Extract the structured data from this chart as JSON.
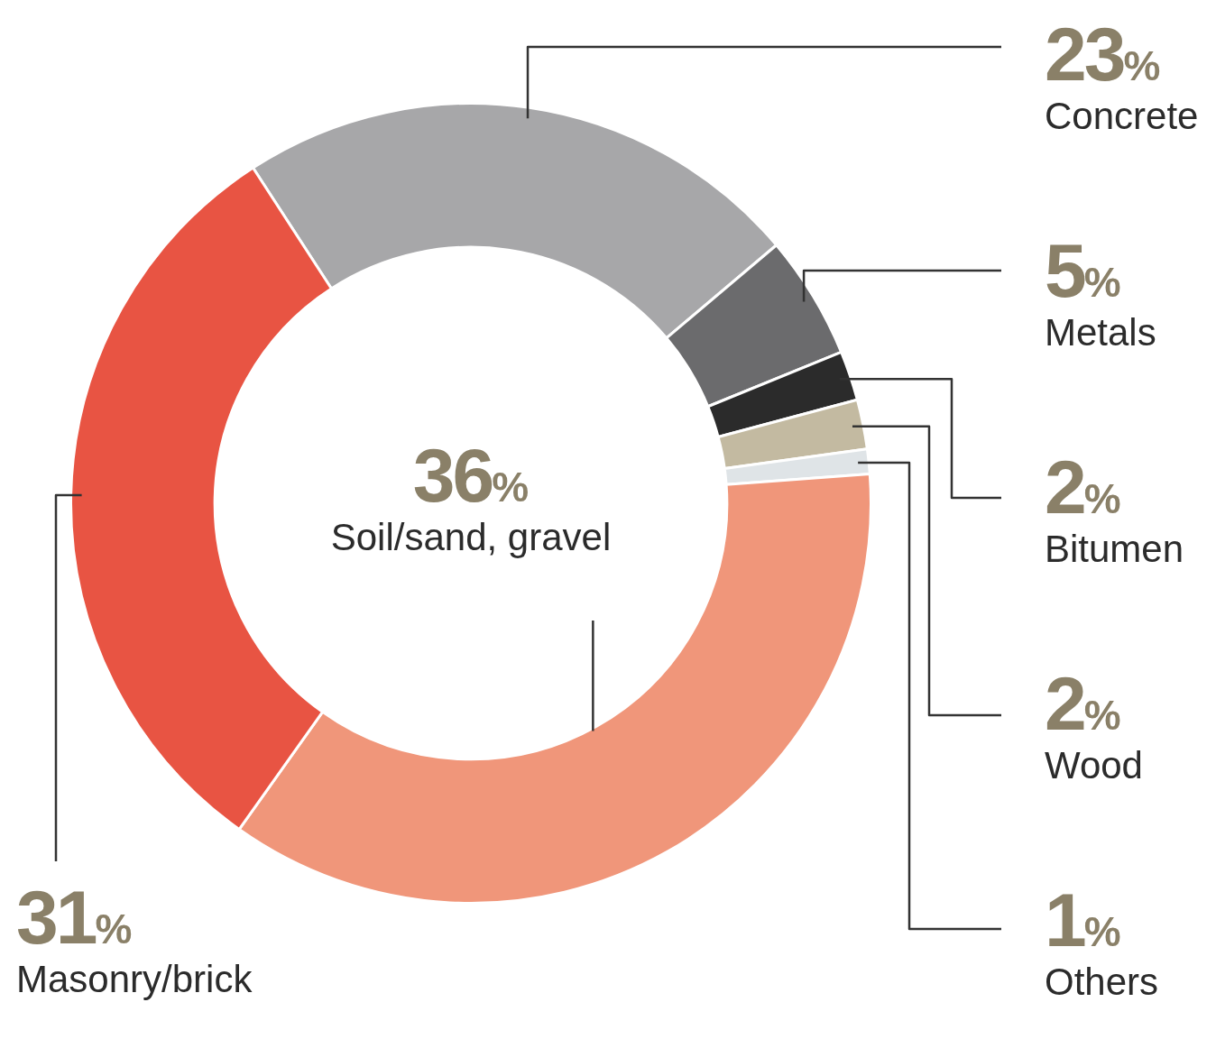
{
  "chart_data": {
    "type": "donut",
    "categories": [
      "Concrete",
      "Metals",
      "Bitumen",
      "Wood",
      "Others",
      "Soil/sand, gravel",
      "Masonry/brick"
    ],
    "values": [
      23,
      5,
      2,
      2,
      1,
      36,
      31
    ],
    "colors": [
      "#a7a7a9",
      "#6b6b6d",
      "#2b2b2b",
      "#c3baa1",
      "#dfe4e7",
      "#f0967a",
      "#e85443"
    ],
    "value_labels": [
      "23%",
      "5%",
      "2%",
      "2%",
      "1%",
      "36%",
      "31%"
    ],
    "legend": false
  }
}
